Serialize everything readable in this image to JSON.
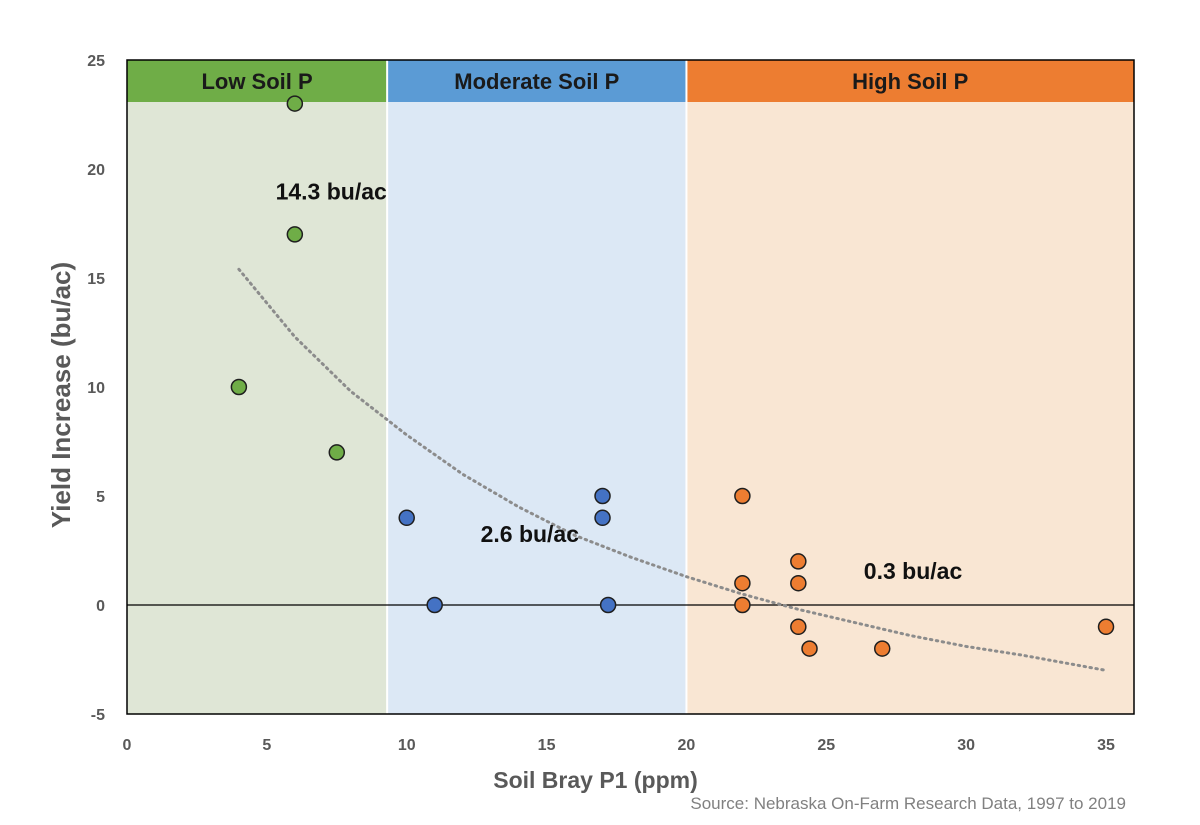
{
  "chart_data": {
    "type": "scatter",
    "title": "",
    "xlabel": "Soil Bray P1 (ppm)",
    "ylabel": "Yield Increase (bu/ac)",
    "xlim": [
      0,
      36
    ],
    "ylim": [
      -5,
      25
    ],
    "xticks": [
      0,
      5,
      10,
      15,
      20,
      25,
      30,
      35
    ],
    "yticks": [
      -5,
      0,
      5,
      10,
      15,
      20,
      25
    ],
    "grid": false,
    "legend": "none",
    "reference_line_y": 0,
    "bands": [
      {
        "label": "Low Soil P",
        "x_from": 0,
        "x_to": 9.3,
        "fill": "#dfe6d6",
        "header_color": "#6fad47"
      },
      {
        "label": "Moderate Soil P",
        "x_from": 9.3,
        "x_to": 20,
        "fill": "#dce8f5",
        "header_color": "#5b9bd5"
      },
      {
        "label": "High Soil P",
        "x_from": 20,
        "x_to": 36,
        "fill": "#f9e6d3",
        "header_color": "#ed7d31"
      }
    ],
    "series": [
      {
        "color": "#6fad47",
        "points": [
          [
            6,
            23
          ],
          [
            6,
            17
          ],
          [
            4,
            10
          ],
          [
            7.5,
            7
          ]
        ]
      },
      {
        "color": "#4472c4",
        "points": [
          [
            10,
            4
          ],
          [
            11,
            0
          ],
          [
            17,
            5
          ],
          [
            17,
            4
          ],
          [
            17.2,
            0
          ]
        ]
      },
      {
        "color": "#ed7d31",
        "points": [
          [
            22,
            5
          ],
          [
            22,
            1
          ],
          [
            22,
            0
          ],
          [
            24,
            2
          ],
          [
            24,
            1
          ],
          [
            24,
            -1
          ],
          [
            24.4,
            -2
          ],
          [
            27,
            -2
          ],
          [
            35,
            -1
          ]
        ]
      }
    ],
    "trendline": {
      "style": "dotted",
      "color": "#8c8c8c",
      "points": [
        [
          4,
          15.4
        ],
        [
          6,
          12.3
        ],
        [
          8,
          9.8
        ],
        [
          10,
          7.8
        ],
        [
          12,
          6.0
        ],
        [
          14,
          4.5
        ],
        [
          16,
          3.2
        ],
        [
          18,
          2.2
        ],
        [
          20,
          1.3
        ],
        [
          22,
          0.5
        ],
        [
          24,
          -0.2
        ],
        [
          26,
          -0.8
        ],
        [
          28,
          -1.4
        ],
        [
          30,
          -1.9
        ],
        [
          32,
          -2.3
        ],
        [
          35,
          -3.0
        ]
      ]
    },
    "annotations": [
      {
        "text": "14.3 bu/ac",
        "x": 7.3,
        "y": 18.6
      },
      {
        "text": "2.6 bu/ac",
        "x": 14.4,
        "y": 2.9
      },
      {
        "text": "0.3 bu/ac",
        "x": 28.1,
        "y": 1.2
      }
    ]
  },
  "source": "Source: Nebraska On-Farm Research Data, 1997 to 2019"
}
